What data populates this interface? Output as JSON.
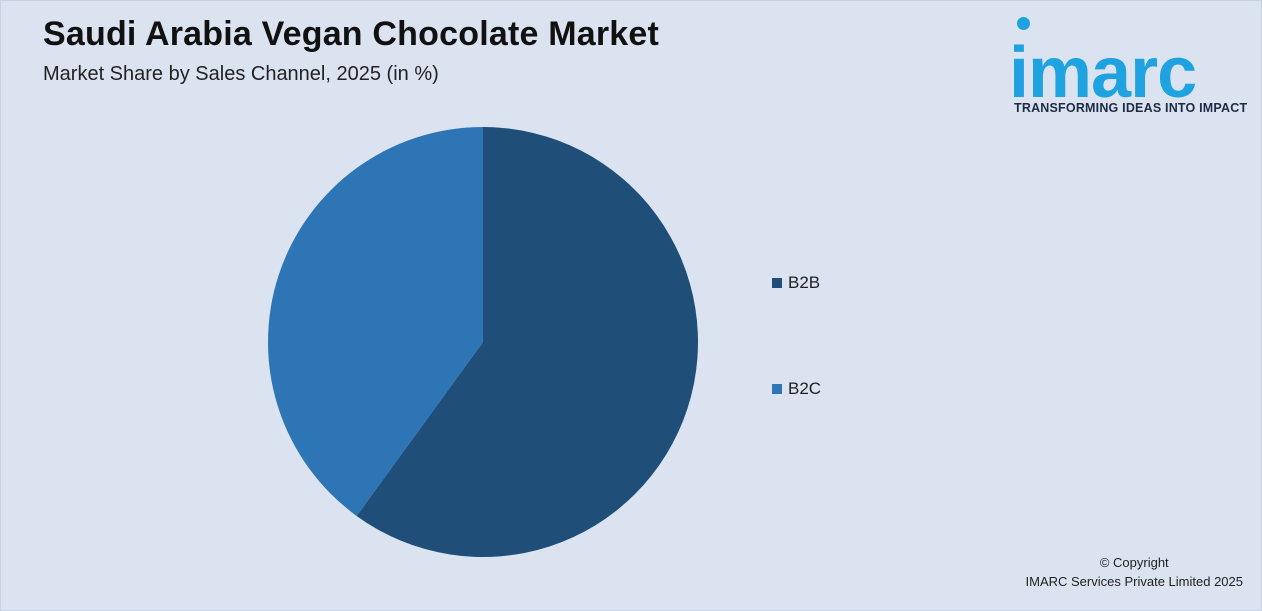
{
  "header": {
    "title": "Saudi Arabia Vegan Chocolate Market",
    "subtitle": "Market Share by Sales Channel, 2025 (in %)"
  },
  "logo": {
    "wordmark": "imarc",
    "tagline": "TRANSFORMING IDEAS INTO IMPACT",
    "color": "#1ea2e0"
  },
  "chart_data": {
    "type": "pie",
    "categories": [
      "B2B",
      "B2C"
    ],
    "values": [
      60,
      40
    ],
    "colors": [
      "#1f4e79",
      "#2e75b6"
    ],
    "start_angle_deg": 0,
    "direction": "clockwise",
    "legend": {
      "position": "right",
      "items": [
        {
          "label": "B2B",
          "color": "#1f4e79"
        },
        {
          "label": "B2C",
          "color": "#2e75b6"
        }
      ]
    }
  },
  "footer": {
    "copyright_line1": "© Copyright",
    "copyright_line2": "IMARC Services Private Limited 2025"
  }
}
